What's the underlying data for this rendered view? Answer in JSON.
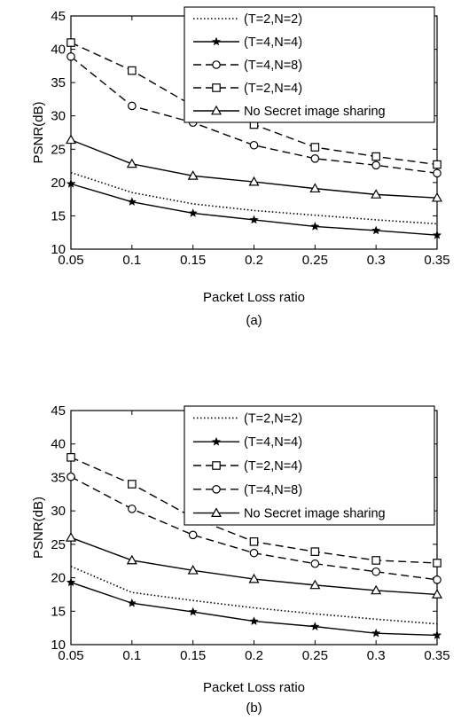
{
  "chart_data": [
    {
      "type": "line",
      "caption": "(a)",
      "xlabel": "Packet Loss ratio",
      "ylabel": "PSNR(dB)",
      "xlim": [
        0.05,
        0.35
      ],
      "ylim": [
        10,
        45
      ],
      "x_ticks": [
        "0.05",
        "0.1",
        "0.15",
        "0.2",
        "0.25",
        "0.3",
        "0.35"
      ],
      "y_ticks": [
        "10",
        "15",
        "20",
        "25",
        "30",
        "35",
        "40",
        "45"
      ],
      "grid": false,
      "legend_position": "top-right",
      "x": [
        0.05,
        0.1,
        0.15,
        0.2,
        0.25,
        0.3,
        0.35
      ],
      "series": [
        {
          "name": "(T=2,N=2)",
          "line": "dotted",
          "marker": "none",
          "values": [
            21.5,
            18.5,
            16.8,
            15.8,
            15.1,
            14.4,
            13.8
          ]
        },
        {
          "name": "(T=4,N=4)",
          "line": "solid",
          "marker": "star",
          "values": [
            19.8,
            17.1,
            15.4,
            14.4,
            13.4,
            12.8,
            12.1
          ]
        },
        {
          "name": "(T=4,N=8)",
          "line": "dashed",
          "marker": "circle",
          "values": [
            38.9,
            31.5,
            29.0,
            25.6,
            23.6,
            22.6,
            21.4
          ]
        },
        {
          "name": "(T=2,N=4)",
          "line": "dashed",
          "marker": "square",
          "values": [
            41.0,
            36.8,
            31.5,
            28.7,
            25.3,
            23.9,
            22.7
          ]
        },
        {
          "name": "No Secret image sharing",
          "line": "solid",
          "marker": "triangle",
          "values": [
            26.4,
            22.8,
            21.0,
            20.1,
            19.1,
            18.2,
            17.7
          ]
        }
      ]
    },
    {
      "type": "line",
      "caption": "(b)",
      "xlabel": "Packet Loss ratio",
      "ylabel": "PSNR(dB)",
      "xlim": [
        0.05,
        0.35
      ],
      "ylim": [
        10,
        45
      ],
      "x_ticks": [
        "0.05",
        "0.1",
        "0.15",
        "0.2",
        "0.25",
        "0.3",
        "0.35"
      ],
      "y_ticks": [
        "10",
        "15",
        "20",
        "25",
        "30",
        "35",
        "40",
        "45"
      ],
      "grid": false,
      "legend_position": "top-right",
      "x": [
        0.05,
        0.1,
        0.15,
        0.2,
        0.25,
        0.3,
        0.35
      ],
      "series": [
        {
          "name": "(T=2,N=2)",
          "line": "dotted",
          "marker": "none",
          "values": [
            21.7,
            17.8,
            16.6,
            15.5,
            14.6,
            13.8,
            13.1
          ]
        },
        {
          "name": "(T=4,N=4)",
          "line": "solid",
          "marker": "star",
          "values": [
            19.3,
            16.2,
            14.9,
            13.5,
            12.7,
            11.7,
            11.4
          ]
        },
        {
          "name": "(T=2,N=4)",
          "line": "dashed",
          "marker": "square",
          "values": [
            38.0,
            34.0,
            29.0,
            25.4,
            23.9,
            22.6,
            22.2
          ]
        },
        {
          "name": "(T=4,N=8)",
          "line": "dashed",
          "marker": "circle",
          "values": [
            35.1,
            30.3,
            26.4,
            23.7,
            22.1,
            20.9,
            19.7
          ]
        },
        {
          "name": "No Secret image sharing",
          "line": "solid",
          "marker": "triangle",
          "values": [
            26.0,
            22.6,
            21.1,
            19.8,
            18.9,
            18.1,
            17.5
          ]
        }
      ]
    }
  ]
}
